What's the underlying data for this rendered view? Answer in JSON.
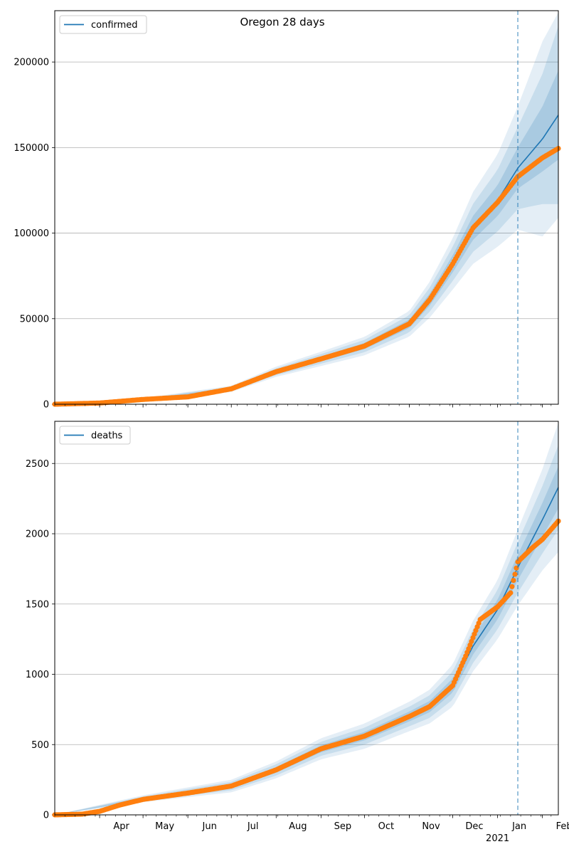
{
  "figure": {
    "title": "Oregon 28 days",
    "colors": {
      "model": "#1f77b4",
      "observed": "#ff7f0e",
      "band": "#1f77b4",
      "grid": "#b0b0b0"
    }
  },
  "chart_data": [
    {
      "type": "line",
      "legend": [
        "confirmed"
      ],
      "legend_position": "top-left",
      "grid": "y",
      "xlim": [
        "2020-03-01",
        "2021-02-12"
      ],
      "ylim": [
        0,
        230000
      ],
      "yticks": [
        0,
        50000,
        100000,
        150000,
        200000
      ],
      "xtick_labels": [
        "Apr",
        "May",
        "Jun",
        "Jul",
        "Aug",
        "Sep",
        "Oct",
        "Nov",
        "Dec",
        "Jan\n2021",
        "Feb"
      ],
      "forecast_start": "2021-01-15",
      "model_line": {
        "x": [
          "2020-03-01",
          "2020-04-01",
          "2020-05-01",
          "2020-06-01",
          "2020-07-01",
          "2020-08-01",
          "2020-09-01",
          "2020-10-01",
          "2020-11-01",
          "2020-11-15",
          "2020-12-01",
          "2020-12-15",
          "2021-01-01",
          "2021-01-15",
          "2021-02-01",
          "2021-02-12"
        ],
        "y": [
          0,
          700,
          2800,
          4300,
          9000,
          19000,
          26500,
          34000,
          47000,
          61000,
          82000,
          103000,
          119000,
          138000,
          155000,
          169000
        ]
      },
      "bands": {
        "x": [
          "2020-03-01",
          "2020-05-01",
          "2020-07-01",
          "2020-08-01",
          "2020-09-01",
          "2020-10-01",
          "2020-11-01",
          "2020-11-15",
          "2020-12-01",
          "2020-12-15",
          "2021-01-01",
          "2021-01-15",
          "2021-02-01",
          "2021-02-12"
        ],
        "center": [
          0,
          2800,
          9000,
          19000,
          26500,
          34000,
          47000,
          61000,
          82000,
          103000,
          119000,
          138000,
          155000,
          169000
        ],
        "half_widths": [
          [
            0,
            250,
            600,
            1000,
            1400,
            1800,
            2500,
            3500,
            5000,
            7000,
            9000,
            12000,
            19000,
            26000
          ],
          [
            0,
            500,
            1200,
            2000,
            2800,
            3600,
            5000,
            7000,
            10000,
            14000,
            18000,
            24000,
            38000,
            52000
          ],
          [
            0,
            800,
            1800,
            3000,
            4200,
            5400,
            7500,
            10500,
            15000,
            21000,
            27000,
            36000,
            57000,
            60000
          ]
        ]
      },
      "observed": {
        "x": [
          "2020-03-01",
          "2020-04-01",
          "2020-05-01",
          "2020-06-01",
          "2020-07-01",
          "2020-08-01",
          "2020-09-01",
          "2020-10-01",
          "2020-11-01",
          "2020-11-15",
          "2020-12-01",
          "2020-12-15",
          "2021-01-01",
          "2021-01-15",
          "2021-02-01",
          "2021-02-12"
        ],
        "y": [
          0,
          700,
          2800,
          4300,
          9000,
          19000,
          26500,
          34000,
          47000,
          61000,
          82000,
          103000,
          118000,
          133000,
          144000,
          149500
        ]
      }
    },
    {
      "type": "line",
      "legend": [
        "deaths"
      ],
      "legend_position": "top-left",
      "grid": "y",
      "xlim": [
        "2020-03-01",
        "2021-02-12"
      ],
      "ylim": [
        0,
        2800
      ],
      "yticks": [
        0,
        500,
        1000,
        1500,
        2000,
        2500
      ],
      "xtick_labels": [
        "Apr",
        "May",
        "Jun",
        "Jul",
        "Aug",
        "Sep",
        "Oct",
        "Nov",
        "Dec",
        "Jan\n2021",
        "Feb"
      ],
      "forecast_start": "2021-01-15",
      "model_line": {
        "x": [
          "2020-03-01",
          "2020-04-01",
          "2020-05-01",
          "2020-06-01",
          "2020-07-01",
          "2020-08-01",
          "2020-09-01",
          "2020-10-01",
          "2020-11-01",
          "2020-11-15",
          "2020-12-01",
          "2020-12-15",
          "2021-01-01",
          "2021-01-15",
          "2021-02-01",
          "2021-02-12"
        ],
        "y": [
          0,
          20,
          115,
          160,
          205,
          320,
          470,
          560,
          700,
          770,
          920,
          1200,
          1460,
          1760,
          2100,
          2330
        ]
      },
      "bands": {
        "x": [
          "2020-03-01",
          "2020-05-01",
          "2020-07-01",
          "2020-08-01",
          "2020-09-01",
          "2020-10-01",
          "2020-11-01",
          "2020-11-15",
          "2020-12-01",
          "2020-12-15",
          "2021-01-01",
          "2021-01-15",
          "2021-02-01",
          "2021-02-12"
        ],
        "center": [
          0,
          115,
          205,
          320,
          470,
          560,
          700,
          770,
          920,
          1200,
          1460,
          1760,
          2100,
          2330
        ],
        "half_widths": [
          [
            0,
            8,
            15,
            20,
            25,
            30,
            35,
            40,
            50,
            60,
            70,
            90,
            120,
            150
          ],
          [
            0,
            16,
            30,
            40,
            50,
            60,
            70,
            80,
            100,
            120,
            140,
            180,
            240,
            300
          ],
          [
            0,
            24,
            45,
            60,
            75,
            90,
            105,
            120,
            150,
            180,
            210,
            270,
            360,
            460
          ]
        ]
      },
      "observed": {
        "x": [
          "2020-03-01",
          "2020-03-20",
          "2020-04-01",
          "2020-04-15",
          "2020-05-01",
          "2020-06-01",
          "2020-07-01",
          "2020-08-01",
          "2020-09-01",
          "2020-10-01",
          "2020-11-01",
          "2020-11-15",
          "2020-12-01",
          "2020-12-10",
          "2020-12-20",
          "2021-01-01",
          "2021-01-10",
          "2021-01-15",
          "2021-01-25",
          "2021-02-01",
          "2021-02-12"
        ],
        "y": [
          0,
          5,
          25,
          70,
          110,
          155,
          205,
          320,
          470,
          560,
          700,
          770,
          920,
          1130,
          1390,
          1480,
          1580,
          1800,
          1900,
          1960,
          2090
        ]
      }
    }
  ]
}
